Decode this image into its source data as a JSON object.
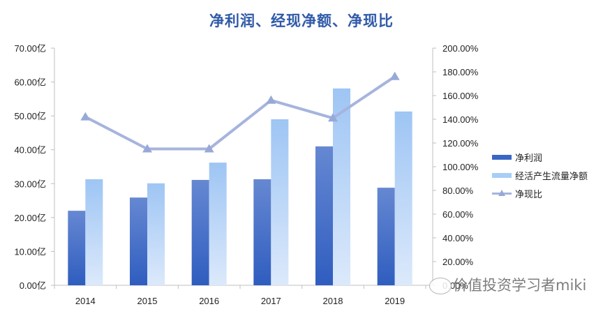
{
  "title": "净利润、经现净额、净现比",
  "legend": {
    "items": [
      {
        "label": "净利润",
        "type": "bar",
        "color": "#3a66c4"
      },
      {
        "label": "经活产生流量净额",
        "type": "bar",
        "color": "#a8cdf6"
      },
      {
        "label": "净现比",
        "type": "line",
        "color": "#a6b4dd"
      }
    ]
  },
  "watermark": {
    "text": "价值投资学习者miki"
  },
  "chart_data": {
    "type": "bar",
    "title": "净利润、经现净额、净现比",
    "categories": [
      "2014",
      "2015",
      "2016",
      "2017",
      "2018",
      "2019"
    ],
    "series": [
      {
        "name": "净利润",
        "type": "bar",
        "axis": "left",
        "unit": "亿",
        "values": [
          22.0,
          25.9,
          31.1,
          31.3,
          41.0,
          28.8
        ]
      },
      {
        "name": "经活产生流量净额",
        "type": "bar",
        "axis": "left",
        "unit": "亿",
        "values": [
          31.3,
          30.1,
          36.2,
          49.0,
          58.1,
          51.3
        ]
      },
      {
        "name": "净现比",
        "type": "line",
        "axis": "right",
        "unit": "%",
        "values": [
          142,
          115,
          115,
          156,
          141,
          176
        ]
      }
    ],
    "y_left": {
      "range": [
        0,
        70
      ],
      "ticks": [
        "0.00亿",
        "10.00亿",
        "20.00亿",
        "30.00亿",
        "40.00亿",
        "50.00亿",
        "60.00亿",
        "70.00亿"
      ]
    },
    "y_right": {
      "range": [
        0,
        200
      ],
      "ticks": [
        "0.00%",
        "20.00%",
        "40.00%",
        "60.00%",
        "80.00%",
        "100.00%",
        "120.00%",
        "140.00%",
        "160.00%",
        "180.00%",
        "200.00%"
      ]
    },
    "xlabel": "",
    "ylabel": "",
    "grid": false,
    "legend_position": "right"
  }
}
